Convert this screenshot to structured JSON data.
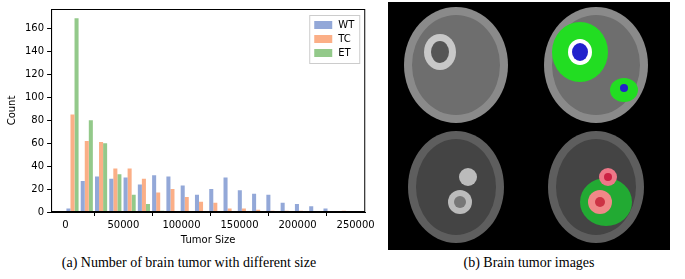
{
  "chart_data": {
    "type": "histogram",
    "x_label": "Tumor Size",
    "y_label": "Count",
    "bins": [
      0,
      12300,
      24600,
      36900,
      49200,
      61500,
      73800,
      86100,
      98400,
      110700,
      123000,
      135300,
      147600,
      159900,
      172200,
      184500,
      196800,
      209100,
      221400,
      233700,
      246000
    ],
    "series": [
      {
        "name": "WT",
        "color": "#93a8d8",
        "values": [
          3,
          27,
          31,
          29,
          30,
          24,
          32,
          31,
          23,
          15,
          20,
          30,
          19,
          16,
          15,
          8,
          7,
          5,
          3,
          0
        ]
      },
      {
        "name": "TC",
        "color": "#fbaf87",
        "values": [
          85,
          62,
          61,
          38,
          38,
          29,
          17,
          20,
          13,
          9,
          8,
          3,
          3,
          2,
          1,
          1,
          1,
          0,
          0,
          1
        ]
      },
      {
        "name": "ET",
        "color": "#93c98a",
        "values": [
          169,
          80,
          60,
          33,
          15,
          7,
          1,
          0,
          0,
          0,
          0,
          0,
          0,
          0,
          0,
          0,
          0,
          0,
          0,
          0
        ]
      }
    ],
    "xlim": [
      -12300,
      258300
    ],
    "xticks": [
      0,
      50000,
      100000,
      150000,
      200000,
      250000
    ],
    "ylim": [
      0,
      177
    ],
    "yticks": [
      0,
      20,
      40,
      60,
      80,
      100,
      120,
      140,
      160
    ],
    "grid": false,
    "legend": "upper right"
  },
  "panels": [
    {
      "caption": "(a) Number of brain tumor with different size"
    },
    {
      "caption": "(b) Brain tumor images"
    }
  ]
}
